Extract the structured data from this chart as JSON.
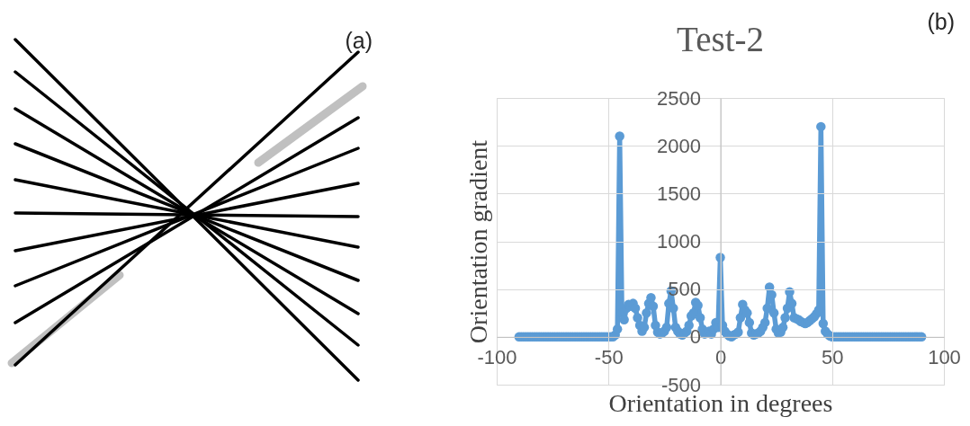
{
  "chart_data": {
    "type": "line",
    "title": "Test-2",
    "xlabel": "Orientation in degrees",
    "ylabel": "Orientation gradient",
    "annotations": [
      "(a)",
      "(b)"
    ],
    "x": [
      -90,
      -89,
      -88,
      -87,
      -86,
      -85,
      -84,
      -83,
      -82,
      -81,
      -80,
      -79,
      -78,
      -77,
      -76,
      -75,
      -74,
      -73,
      -72,
      -71,
      -70,
      -69,
      -68,
      -67,
      -66,
      -65,
      -64,
      -63,
      -62,
      -61,
      -60,
      -59,
      -58,
      -57,
      -56,
      -55,
      -54,
      -53,
      -52,
      -51,
      -50,
      -49,
      -48,
      -47,
      -46,
      -45,
      -44,
      -43,
      -42,
      -41,
      -40,
      -39,
      -38,
      -37,
      -36,
      -35,
      -34,
      -33,
      -32,
      -31,
      -30,
      -29,
      -28,
      -27,
      -26,
      -25,
      -24,
      -23,
      -22,
      -21,
      -20,
      -19,
      -18,
      -17,
      -16,
      -15,
      -14,
      -13,
      -12,
      -11,
      -10,
      -9,
      -8,
      -7,
      -6,
      -5,
      -4,
      -3,
      -2,
      -1,
      0,
      1,
      2,
      3,
      4,
      5,
      6,
      7,
      8,
      9,
      10,
      11,
      12,
      13,
      14,
      15,
      16,
      17,
      18,
      19,
      20,
      21,
      22,
      23,
      24,
      25,
      26,
      27,
      28,
      29,
      30,
      31,
      32,
      33,
      34,
      35,
      36,
      37,
      38,
      39,
      40,
      41,
      42,
      43,
      44,
      45,
      46,
      47,
      48,
      49,
      50,
      51,
      52,
      53,
      54,
      55,
      56,
      57,
      58,
      59,
      60,
      61,
      62,
      63,
      64,
      65,
      66,
      67,
      68,
      69,
      70,
      71,
      72,
      73,
      74,
      75,
      76,
      77,
      78,
      79,
      80,
      81,
      82,
      83,
      84,
      85,
      86,
      87,
      88,
      89,
      90
    ],
    "series": [
      {
        "color": "#5b9bd5",
        "values": [
          0,
          0,
          0,
          0,
          0,
          0,
          0,
          0,
          0,
          0,
          0,
          0,
          0,
          0,
          0,
          0,
          0,
          0,
          0,
          0,
          0,
          0,
          0,
          0,
          0,
          0,
          0,
          0,
          0,
          0,
          0,
          0,
          0,
          0,
          0,
          0,
          0,
          0,
          0,
          0,
          0,
          0,
          0,
          20,
          80,
          2100,
          250,
          180,
          300,
          340,
          320,
          350,
          300,
          200,
          120,
          60,
          100,
          250,
          350,
          410,
          320,
          120,
          50,
          30,
          40,
          60,
          100,
          350,
          480,
          300,
          100,
          60,
          30,
          20,
          40,
          60,
          120,
          220,
          250,
          360,
          330,
          200,
          80,
          30,
          40,
          60,
          30,
          80,
          150,
          100,
          830,
          120,
          60,
          30,
          10,
          0,
          20,
          30,
          50,
          200,
          340,
          280,
          250,
          150,
          40,
          20,
          30,
          40,
          60,
          100,
          150,
          300,
          520,
          440,
          250,
          80,
          40,
          50,
          100,
          200,
          300,
          470,
          350,
          200,
          190,
          180,
          160,
          150,
          140,
          150,
          170,
          190,
          210,
          240,
          280,
          2200,
          140,
          60,
          30,
          10,
          0,
          0,
          0,
          0,
          0,
          0,
          0,
          0,
          0,
          0,
          0,
          0,
          0,
          0,
          0,
          0,
          0,
          0,
          0,
          0,
          0,
          0,
          0,
          0,
          0,
          0,
          0,
          0,
          0,
          0,
          0,
          0,
          0,
          0,
          0,
          0,
          0,
          0,
          0,
          0,
          0
        ]
      }
    ],
    "xlim": [
      -100,
      100
    ],
    "ylim": [
      -500,
      2500
    ],
    "xticks": [
      -100,
      -50,
      0,
      50,
      100
    ],
    "yticks": [
      -500,
      0,
      500,
      1000,
      1500,
      2000,
      2500
    ],
    "grid": true,
    "marker": "circle",
    "line_style": "solid"
  }
}
